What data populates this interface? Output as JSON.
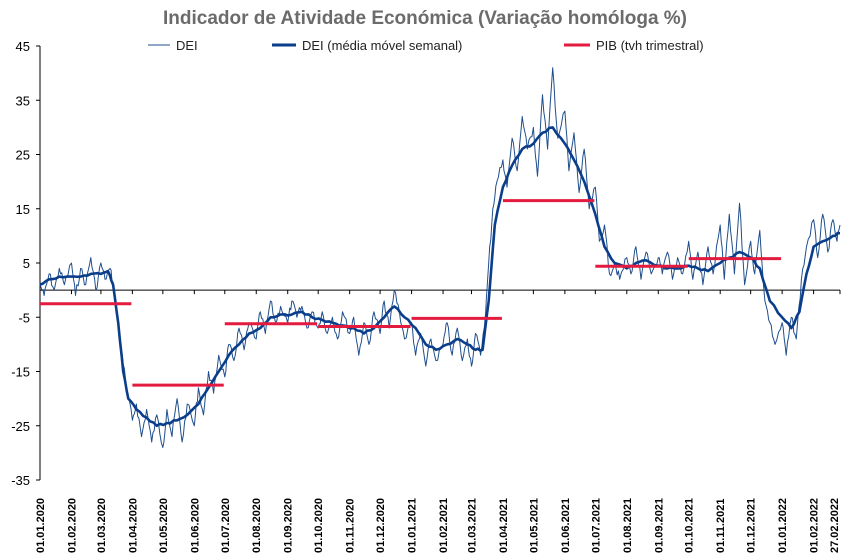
{
  "chart_data": {
    "type": "line",
    "title": "Indicador de Atividade Económica (Variação homóloga %)",
    "xlabel": "",
    "ylabel": "",
    "ylim": [
      -35,
      45
    ],
    "yticks": [
      -35,
      -25,
      -15,
      -5,
      5,
      15,
      25,
      35,
      45
    ],
    "grid": false,
    "legend_position": "top",
    "x_range": [
      "2020-01-01",
      "2022-02-27"
    ],
    "x_tick_labels": [
      "01.01.2020",
      "01.02.2020",
      "01.03.2020",
      "01.04.2020",
      "01.05.2020",
      "01.06.2020",
      "01.07.2020",
      "01.08.2020",
      "01.09.2020",
      "01.10.2020",
      "01.11.2020",
      "01.12.2020",
      "01.01.2021",
      "01.02.2021",
      "01.03.2021",
      "01.04.2021",
      "01.05.2021",
      "01.06.2021",
      "01.07.2021",
      "01.08.2021",
      "01.09.2021",
      "01.10.2021",
      "01.11.2021",
      "01.12.2021",
      "01.01.2022",
      "01.02.2022",
      "27.02.2022"
    ],
    "x_tick_dates": [
      "2020-01-01",
      "2020-02-01",
      "2020-03-01",
      "2020-04-01",
      "2020-05-01",
      "2020-06-01",
      "2020-07-01",
      "2020-08-01",
      "2020-09-01",
      "2020-10-01",
      "2020-11-01",
      "2020-12-01",
      "2021-01-01",
      "2021-02-01",
      "2021-03-01",
      "2021-04-01",
      "2021-05-01",
      "2021-06-01",
      "2021-07-01",
      "2021-08-01",
      "2021-09-01",
      "2021-10-01",
      "2021-11-01",
      "2021-12-01",
      "2022-01-01",
      "2022-02-01",
      "2022-02-27"
    ],
    "series": [
      {
        "name": "DEI",
        "style": "thin",
        "color": "#1f4e8c",
        "points": [
          [
            "2020-01-01",
            1
          ],
          [
            "2020-01-05",
            -1
          ],
          [
            "2020-01-10",
            3
          ],
          [
            "2020-01-15",
            0
          ],
          [
            "2020-01-20",
            4
          ],
          [
            "2020-01-25",
            1
          ],
          [
            "2020-02-01",
            5
          ],
          [
            "2020-02-05",
            -1
          ],
          [
            "2020-02-10",
            4
          ],
          [
            "2020-02-15",
            1
          ],
          [
            "2020-02-20",
            6
          ],
          [
            "2020-02-25",
            0
          ],
          [
            "2020-03-01",
            5
          ],
          [
            "2020-03-05",
            2
          ],
          [
            "2020-03-10",
            4
          ],
          [
            "2020-03-14",
            0
          ],
          [
            "2020-03-18",
            -6
          ],
          [
            "2020-03-22",
            -12
          ],
          [
            "2020-03-26",
            -18
          ],
          [
            "2020-04-01",
            -24
          ],
          [
            "2020-04-05",
            -21
          ],
          [
            "2020-04-10",
            -27
          ],
          [
            "2020-04-15",
            -22
          ],
          [
            "2020-04-20",
            -28
          ],
          [
            "2020-04-25",
            -23
          ],
          [
            "2020-05-01",
            -29
          ],
          [
            "2020-05-05",
            -22
          ],
          [
            "2020-05-10",
            -27
          ],
          [
            "2020-05-15",
            -20
          ],
          [
            "2020-05-20",
            -28
          ],
          [
            "2020-05-25",
            -21
          ],
          [
            "2020-06-01",
            -25
          ],
          [
            "2020-06-05",
            -18
          ],
          [
            "2020-06-10",
            -23
          ],
          [
            "2020-06-15",
            -15
          ],
          [
            "2020-06-20",
            -19
          ],
          [
            "2020-06-25",
            -12
          ],
          [
            "2020-07-01",
            -16
          ],
          [
            "2020-07-05",
            -10
          ],
          [
            "2020-07-10",
            -13
          ],
          [
            "2020-07-15",
            -7
          ],
          [
            "2020-07-20",
            -11
          ],
          [
            "2020-07-25",
            -6
          ],
          [
            "2020-08-01",
            -9
          ],
          [
            "2020-08-05",
            -4
          ],
          [
            "2020-08-10",
            -8
          ],
          [
            "2020-08-15",
            -2
          ],
          [
            "2020-08-20",
            -6
          ],
          [
            "2020-08-25",
            -3
          ],
          [
            "2020-09-01",
            -6
          ],
          [
            "2020-09-05",
            -2
          ],
          [
            "2020-09-10",
            -5
          ],
          [
            "2020-09-15",
            -3
          ],
          [
            "2020-09-20",
            -7
          ],
          [
            "2020-09-25",
            -4
          ],
          [
            "2020-10-01",
            -7
          ],
          [
            "2020-10-05",
            -4
          ],
          [
            "2020-10-10",
            -8
          ],
          [
            "2020-10-15",
            -5
          ],
          [
            "2020-10-20",
            -9
          ],
          [
            "2020-10-25",
            -4
          ],
          [
            "2020-11-01",
            -8
          ],
          [
            "2020-11-05",
            -5
          ],
          [
            "2020-11-10",
            -12
          ],
          [
            "2020-11-15",
            -6
          ],
          [
            "2020-11-20",
            -10
          ],
          [
            "2020-11-25",
            -4
          ],
          [
            "2020-12-01",
            -8
          ],
          [
            "2020-12-05",
            -2
          ],
          [
            "2020-12-10",
            -7
          ],
          [
            "2020-12-15",
            0
          ],
          [
            "2020-12-20",
            -4
          ],
          [
            "2020-12-25",
            -9
          ],
          [
            "2021-01-01",
            -6
          ],
          [
            "2021-01-05",
            -12
          ],
          [
            "2021-01-10",
            -8
          ],
          [
            "2021-01-15",
            -14
          ],
          [
            "2021-01-20",
            -9
          ],
          [
            "2021-01-25",
            -13
          ],
          [
            "2021-02-01",
            -10
          ],
          [
            "2021-02-05",
            -6
          ],
          [
            "2021-02-10",
            -12
          ],
          [
            "2021-02-15",
            -7
          ],
          [
            "2021-02-20",
            -13
          ],
          [
            "2021-02-25",
            -9
          ],
          [
            "2021-03-01",
            -14
          ],
          [
            "2021-03-05",
            -8
          ],
          [
            "2021-03-10",
            -12
          ],
          [
            "2021-03-15",
            -4
          ],
          [
            "2021-03-18",
            5
          ],
          [
            "2021-03-22",
            15
          ],
          [
            "2021-03-26",
            20
          ],
          [
            "2021-04-01",
            24
          ],
          [
            "2021-04-05",
            19
          ],
          [
            "2021-04-10",
            28
          ],
          [
            "2021-04-15",
            22
          ],
          [
            "2021-04-20",
            32
          ],
          [
            "2021-04-25",
            26
          ],
          [
            "2021-05-01",
            30
          ],
          [
            "2021-05-05",
            21
          ],
          [
            "2021-05-10",
            36
          ],
          [
            "2021-05-15",
            26
          ],
          [
            "2021-05-20",
            41
          ],
          [
            "2021-05-25",
            28
          ],
          [
            "2021-06-01",
            33
          ],
          [
            "2021-06-05",
            22
          ],
          [
            "2021-06-10",
            29
          ],
          [
            "2021-06-15",
            18
          ],
          [
            "2021-06-20",
            26
          ],
          [
            "2021-06-25",
            15
          ],
          [
            "2021-07-01",
            19
          ],
          [
            "2021-07-05",
            9
          ],
          [
            "2021-07-10",
            12
          ],
          [
            "2021-07-15",
            3
          ],
          [
            "2021-07-20",
            5
          ],
          [
            "2021-07-25",
            2
          ],
          [
            "2021-08-01",
            6
          ],
          [
            "2021-08-05",
            3
          ],
          [
            "2021-08-10",
            8
          ],
          [
            "2021-08-15",
            2
          ],
          [
            "2021-08-20",
            7
          ],
          [
            "2021-08-25",
            3
          ],
          [
            "2021-09-01",
            6
          ],
          [
            "2021-09-05",
            3
          ],
          [
            "2021-09-10",
            7
          ],
          [
            "2021-09-15",
            2
          ],
          [
            "2021-09-20",
            6
          ],
          [
            "2021-09-25",
            3
          ],
          [
            "2021-10-01",
            9
          ],
          [
            "2021-10-05",
            2
          ],
          [
            "2021-10-10",
            7
          ],
          [
            "2021-10-15",
            1
          ],
          [
            "2021-10-20",
            8
          ],
          [
            "2021-10-25",
            3
          ],
          [
            "2021-11-01",
            12
          ],
          [
            "2021-11-05",
            2
          ],
          [
            "2021-11-10",
            14
          ],
          [
            "2021-11-15",
            3
          ],
          [
            "2021-11-20",
            16
          ],
          [
            "2021-11-25",
            1
          ],
          [
            "2021-12-01",
            9
          ],
          [
            "2021-12-05",
            3
          ],
          [
            "2021-12-10",
            11
          ],
          [
            "2021-12-15",
            -2
          ],
          [
            "2021-12-20",
            -6
          ],
          [
            "2021-12-25",
            -10
          ],
          [
            "2022-01-01",
            -6
          ],
          [
            "2022-01-05",
            -12
          ],
          [
            "2022-01-10",
            -5
          ],
          [
            "2022-01-15",
            -9
          ],
          [
            "2022-01-20",
            2
          ],
          [
            "2022-01-25",
            8
          ],
          [
            "2022-02-01",
            13
          ],
          [
            "2022-02-05",
            6
          ],
          [
            "2022-02-10",
            14
          ],
          [
            "2022-02-15",
            7
          ],
          [
            "2022-02-20",
            13
          ],
          [
            "2022-02-24",
            9
          ],
          [
            "2022-02-27",
            12
          ]
        ]
      },
      {
        "name": "DEI (média móvel semanal)",
        "style": "thick",
        "color": "#0b3e8a",
        "points": [
          [
            "2020-01-01",
            1
          ],
          [
            "2020-01-10",
            2
          ],
          [
            "2020-01-20",
            2.5
          ],
          [
            "2020-02-01",
            2.5
          ],
          [
            "2020-02-10",
            2.5
          ],
          [
            "2020-02-20",
            3
          ],
          [
            "2020-03-01",
            3
          ],
          [
            "2020-03-08",
            3.5
          ],
          [
            "2020-03-13",
            1
          ],
          [
            "2020-03-18",
            -6
          ],
          [
            "2020-03-23",
            -15
          ],
          [
            "2020-03-28",
            -20
          ],
          [
            "2020-04-05",
            -22
          ],
          [
            "2020-04-15",
            -23.5
          ],
          [
            "2020-04-25",
            -25
          ],
          [
            "2020-05-05",
            -24.5
          ],
          [
            "2020-05-15",
            -24
          ],
          [
            "2020-05-25",
            -23
          ],
          [
            "2020-06-05",
            -21
          ],
          [
            "2020-06-15",
            -18
          ],
          [
            "2020-06-25",
            -15
          ],
          [
            "2020-07-05",
            -12
          ],
          [
            "2020-07-15",
            -10
          ],
          [
            "2020-07-25",
            -8
          ],
          [
            "2020-08-05",
            -7
          ],
          [
            "2020-08-15",
            -5
          ],
          [
            "2020-08-25",
            -4.5
          ],
          [
            "2020-09-05",
            -4.5
          ],
          [
            "2020-09-15",
            -4
          ],
          [
            "2020-09-25",
            -5
          ],
          [
            "2020-10-05",
            -5.5
          ],
          [
            "2020-10-15",
            -6
          ],
          [
            "2020-10-25",
            -6.5
          ],
          [
            "2020-11-05",
            -7
          ],
          [
            "2020-11-15",
            -8
          ],
          [
            "2020-11-25",
            -7
          ],
          [
            "2020-12-05",
            -5
          ],
          [
            "2020-12-15",
            -3
          ],
          [
            "2020-12-25",
            -5
          ],
          [
            "2021-01-05",
            -7
          ],
          [
            "2021-01-15",
            -10
          ],
          [
            "2021-01-25",
            -11
          ],
          [
            "2021-02-05",
            -10
          ],
          [
            "2021-02-15",
            -9
          ],
          [
            "2021-02-25",
            -10
          ],
          [
            "2021-03-05",
            -11
          ],
          [
            "2021-03-12",
            -11
          ],
          [
            "2021-03-18",
            -2
          ],
          [
            "2021-03-24",
            12
          ],
          [
            "2021-04-01",
            19
          ],
          [
            "2021-04-10",
            23
          ],
          [
            "2021-04-20",
            26
          ],
          [
            "2021-05-01",
            27
          ],
          [
            "2021-05-10",
            29
          ],
          [
            "2021-05-20",
            30
          ],
          [
            "2021-06-01",
            27
          ],
          [
            "2021-06-10",
            24
          ],
          [
            "2021-06-20",
            20
          ],
          [
            "2021-07-01",
            14
          ],
          [
            "2021-07-10",
            8
          ],
          [
            "2021-07-20",
            5
          ],
          [
            "2021-08-01",
            4
          ],
          [
            "2021-08-10",
            5
          ],
          [
            "2021-08-20",
            5.5
          ],
          [
            "2021-09-01",
            4.5
          ],
          [
            "2021-09-10",
            4
          ],
          [
            "2021-09-20",
            4
          ],
          [
            "2021-10-01",
            4.5
          ],
          [
            "2021-10-10",
            4
          ],
          [
            "2021-10-20",
            3.5
          ],
          [
            "2021-11-01",
            5
          ],
          [
            "2021-11-10",
            6
          ],
          [
            "2021-11-20",
            7
          ],
          [
            "2021-12-01",
            6
          ],
          [
            "2021-12-10",
            4
          ],
          [
            "2021-12-20",
            -2
          ],
          [
            "2022-01-01",
            -5
          ],
          [
            "2022-01-10",
            -7
          ],
          [
            "2022-01-18",
            -4
          ],
          [
            "2022-01-25",
            3
          ],
          [
            "2022-02-01",
            8
          ],
          [
            "2022-02-10",
            9
          ],
          [
            "2022-02-20",
            10
          ],
          [
            "2022-02-27",
            10.5
          ]
        ]
      },
      {
        "name": "PIB (tvh trimestral)",
        "style": "step",
        "color": "#e31b3f",
        "segments": [
          {
            "start": "2020-01-01",
            "end": "2020-03-31",
            "value": -2.5
          },
          {
            "start": "2020-04-01",
            "end": "2020-06-30",
            "value": -17.5
          },
          {
            "start": "2020-07-01",
            "end": "2020-09-30",
            "value": -6.2
          },
          {
            "start": "2020-10-01",
            "end": "2020-12-31",
            "value": -6.7
          },
          {
            "start": "2021-01-01",
            "end": "2021-03-31",
            "value": -5.2
          },
          {
            "start": "2021-04-01",
            "end": "2021-06-30",
            "value": 16.5
          },
          {
            "start": "2021-07-01",
            "end": "2021-09-30",
            "value": 4.4
          },
          {
            "start": "2021-10-01",
            "end": "2021-12-31",
            "value": 5.8
          }
        ]
      }
    ]
  }
}
